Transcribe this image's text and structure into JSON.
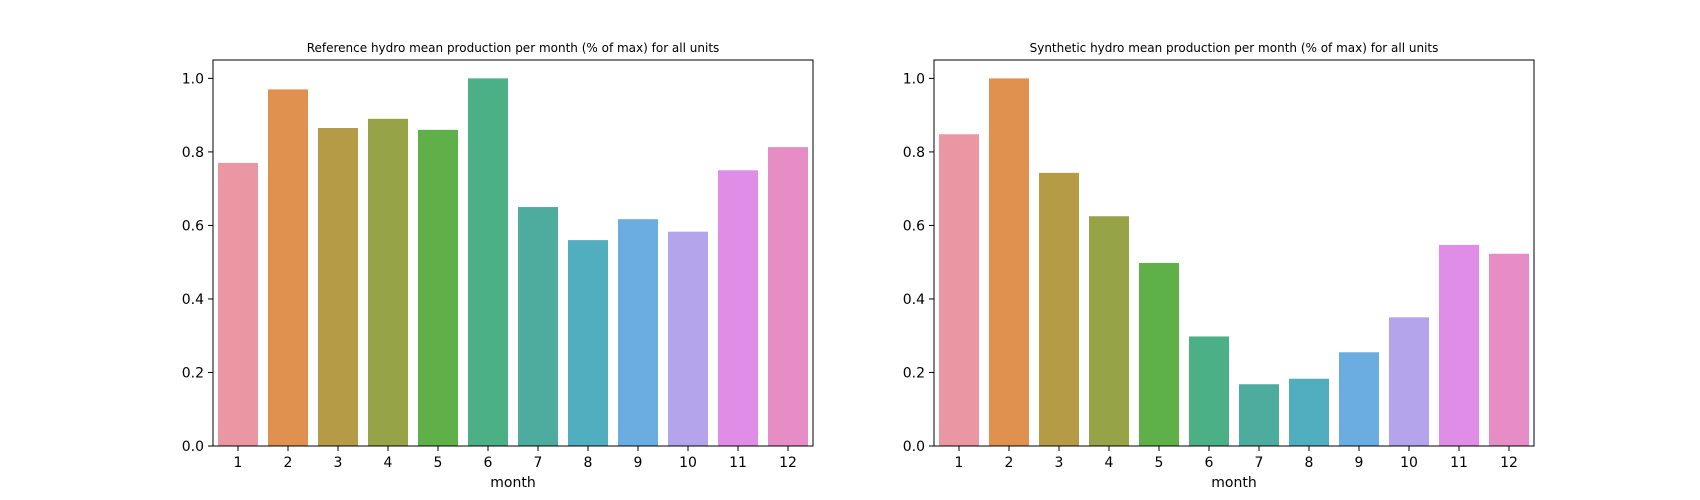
{
  "chart_data": [
    {
      "type": "bar",
      "title": "Reference hydro mean production per month (% of max) for all units",
      "xlabel": "month",
      "ylabel": "",
      "categories": [
        "1",
        "2",
        "3",
        "4",
        "5",
        "6",
        "7",
        "8",
        "9",
        "10",
        "11",
        "12"
      ],
      "values": [
        0.77,
        0.97,
        0.865,
        0.89,
        0.86,
        1.0,
        0.65,
        0.56,
        0.617,
        0.583,
        0.75,
        0.813
      ],
      "ylim": [
        0,
        1.05
      ],
      "yticks": [
        0.0,
        0.2,
        0.4,
        0.6,
        0.8,
        1.0
      ],
      "ytick_labels": [
        "0.0",
        "0.2",
        "0.4",
        "0.6",
        "0.8",
        "1.0"
      ],
      "colors": [
        "#ea96a3",
        "#e1914f",
        "#b69b47",
        "#97a347",
        "#5fb048",
        "#4bb085",
        "#4dac9d",
        "#50aebe",
        "#6cade1",
        "#b4a4ec",
        "#df8de6",
        "#e68dc5"
      ],
      "grid": false
    },
    {
      "type": "bar",
      "title": "Synthetic hydro mean production per month (% of max) for all units",
      "xlabel": "month",
      "ylabel": "",
      "categories": [
        "1",
        "2",
        "3",
        "4",
        "5",
        "6",
        "7",
        "8",
        "9",
        "10",
        "11",
        "12"
      ],
      "values": [
        0.848,
        1.0,
        0.743,
        0.625,
        0.498,
        0.298,
        0.168,
        0.183,
        0.255,
        0.35,
        0.547,
        0.523
      ],
      "ylim": [
        0,
        1.05
      ],
      "yticks": [
        0.0,
        0.2,
        0.4,
        0.6,
        0.8,
        1.0
      ],
      "ytick_labels": [
        "0.0",
        "0.2",
        "0.4",
        "0.6",
        "0.8",
        "1.0"
      ],
      "colors": [
        "#ea96a3",
        "#e1914f",
        "#b69b47",
        "#97a347",
        "#5fb048",
        "#4bb085",
        "#4dac9d",
        "#50aebe",
        "#6cade1",
        "#b4a4ec",
        "#df8de6",
        "#e68dc5"
      ],
      "grid": false
    }
  ]
}
